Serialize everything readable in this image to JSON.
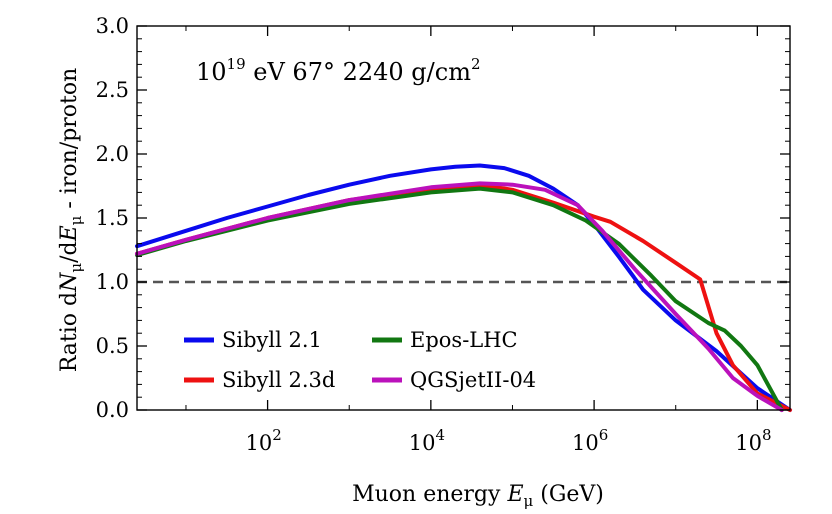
{
  "chart_data": {
    "type": "line",
    "title": "",
    "annotation": {
      "base": "10",
      "exp": "19",
      "rest": " eV  67°  2240 g/cm",
      "sup2": "2"
    },
    "xlabel": "Muon energy Eμ (GeV)",
    "xlabel_parts": {
      "pre": "Muon energy ",
      "var": "E",
      "sub": "μ",
      "post": " (GeV)"
    },
    "ylabel": "Ratio dNμ/dEμ - iron/proton",
    "ylabel_parts": {
      "p1": "Ratio d",
      "v1": "N",
      "s1": "μ",
      "p2": "/d",
      "v2": "E",
      "s2": "μ",
      "p3": " - iron/proton"
    },
    "xscale": "log",
    "xlim_log10": [
      0.4,
      8.4
    ],
    "ylim": [
      0.0,
      3.0
    ],
    "yticks": [
      "0.0",
      "0.5",
      "1.0",
      "1.5",
      "2.0",
      "2.5",
      "3.0"
    ],
    "xticks": [
      {
        "base": "10",
        "exp": "2",
        "log10": 2
      },
      {
        "base": "10",
        "exp": "4",
        "log10": 4
      },
      {
        "base": "10",
        "exp": "6",
        "log10": 6
      },
      {
        "base": "10",
        "exp": "8",
        "log10": 8
      }
    ],
    "reference_line": {
      "y": 1.0,
      "style": "dashed",
      "color": "#555555"
    },
    "legend_position": "lower-left",
    "series": [
      {
        "name": "Sibyll 2.1",
        "color": "#0a0aee",
        "log10x": [
          0.4,
          1.0,
          1.5,
          2.0,
          2.5,
          3.0,
          3.5,
          4.0,
          4.3,
          4.6,
          4.9,
          5.2,
          5.5,
          5.8,
          6.0,
          6.3,
          6.6,
          7.0,
          7.5,
          8.0,
          8.4
        ],
        "y": [
          1.28,
          1.4,
          1.5,
          1.59,
          1.68,
          1.76,
          1.83,
          1.88,
          1.9,
          1.91,
          1.89,
          1.83,
          1.73,
          1.6,
          1.45,
          1.2,
          0.94,
          0.7,
          0.46,
          0.17,
          0.0
        ]
      },
      {
        "name": "Sibyll 2.3d",
        "color": "#ee1111",
        "log10x": [
          0.4,
          1.0,
          2.0,
          3.0,
          4.0,
          4.7,
          5.0,
          5.5,
          6.0,
          6.2,
          6.6,
          7.0,
          7.3,
          7.5,
          7.7,
          8.0,
          8.4
        ],
        "y": [
          1.22,
          1.33,
          1.5,
          1.64,
          1.73,
          1.75,
          1.72,
          1.62,
          1.51,
          1.47,
          1.32,
          1.15,
          1.02,
          0.6,
          0.35,
          0.13,
          0.0
        ]
      },
      {
        "name": "Epos-LHC",
        "color": "#117711",
        "log10x": [
          0.4,
          1.0,
          2.0,
          3.0,
          4.0,
          4.6,
          5.0,
          5.5,
          5.9,
          6.3,
          6.7,
          7.0,
          7.4,
          7.6,
          7.8,
          8.0,
          8.3
        ],
        "y": [
          1.21,
          1.32,
          1.48,
          1.61,
          1.7,
          1.73,
          1.7,
          1.6,
          1.48,
          1.3,
          1.05,
          0.85,
          0.68,
          0.62,
          0.5,
          0.35,
          0.0
        ]
      },
      {
        "name": "QGSjetII-04",
        "color": "#bb11bb",
        "log10x": [
          0.4,
          1.0,
          2.0,
          3.0,
          4.0,
          4.6,
          5.0,
          5.4,
          5.8,
          6.1,
          6.5,
          7.0,
          7.4,
          7.7,
          8.0,
          8.3
        ],
        "y": [
          1.22,
          1.33,
          1.5,
          1.64,
          1.74,
          1.77,
          1.76,
          1.72,
          1.6,
          1.4,
          1.1,
          0.75,
          0.48,
          0.25,
          0.11,
          0.0
        ]
      }
    ]
  }
}
